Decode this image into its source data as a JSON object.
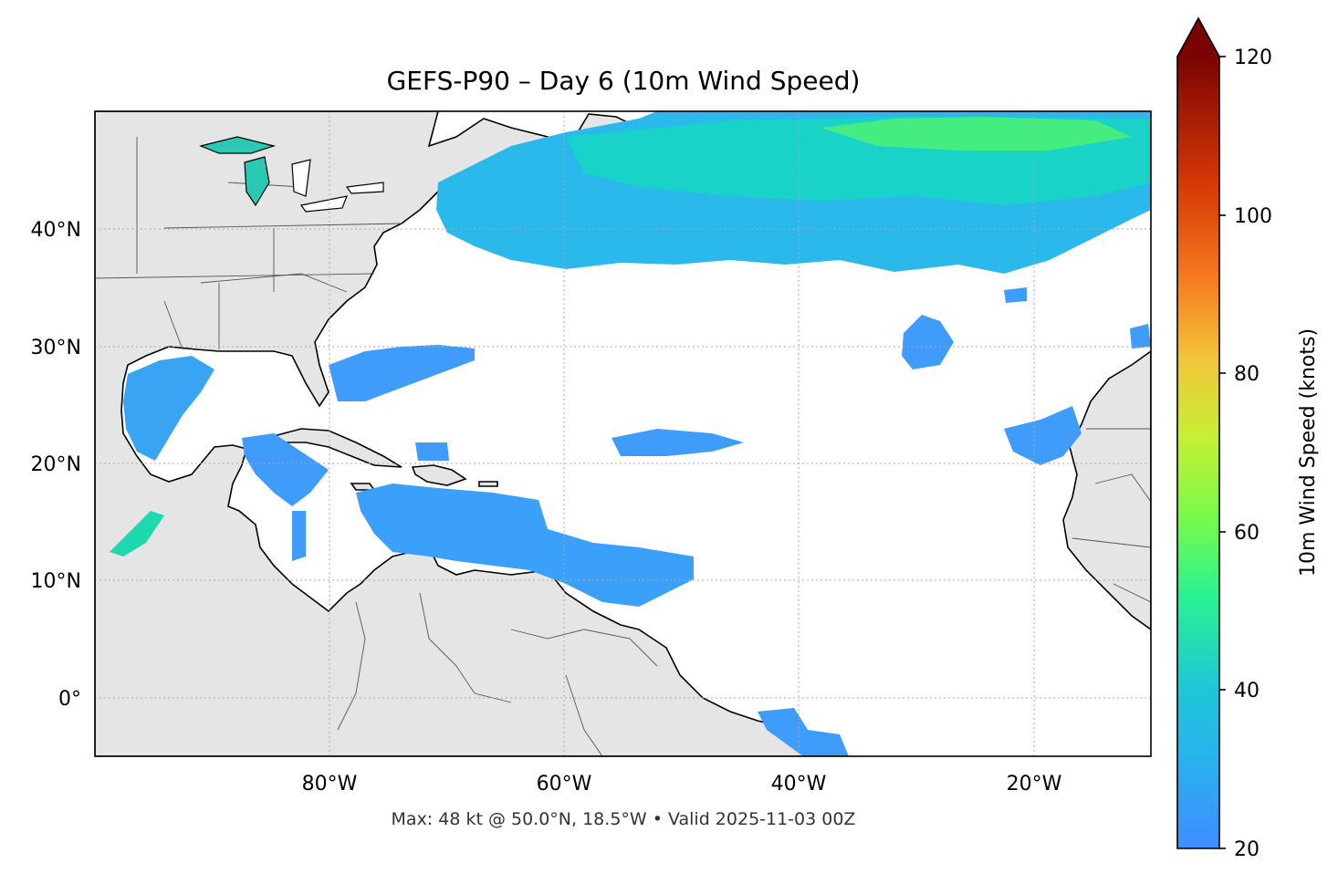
{
  "title": "GEFS-P90 – Day 6 (10m Wind Speed)",
  "footer": "Max: 48 kt @ 50.0°N, 18.5°W • Valid 2025-11-03 00Z",
  "map": {
    "lon_range": [
      -100,
      -10
    ],
    "lat_range": [
      -5,
      50
    ],
    "lon_ticks": [
      "80°W",
      "60°W",
      "40°W",
      "20°W"
    ],
    "lat_ticks": [
      "40°N",
      "30°N",
      "20°N",
      "10°N",
      "0°"
    ],
    "gridlines": true,
    "land_color": "#e5e5e5",
    "ocean_color": "#ffffff"
  },
  "colorbar": {
    "label": "10m Wind Speed (knots)",
    "ticks": [
      "20",
      "40",
      "60",
      "80",
      "100",
      "120"
    ],
    "range": [
      20,
      120
    ],
    "extend": "max",
    "colormap": "turbo",
    "colors": [
      "#3f8dff",
      "#1ec6d8",
      "#2af290",
      "#a6f935",
      "#f3c43b",
      "#f77a1f",
      "#d43806",
      "#7a0403"
    ]
  }
}
